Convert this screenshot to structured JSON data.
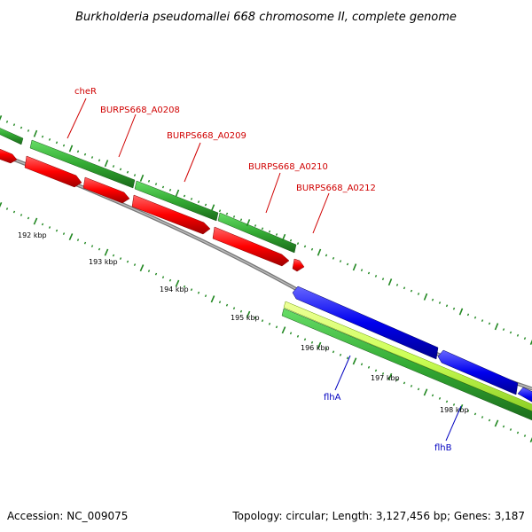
{
  "title": "Burkholderia pseudomallei 668 chromosome II, complete genome",
  "footer": {
    "accession": "Accession: NC_009075",
    "stats": "Topology: circular; Length: 3,127,456 bp; Genes: 3,187"
  },
  "kbp_labels": [
    "192 kbp",
    "193 kbp",
    "194 kbp",
    "195 kbp",
    "196 kbp",
    "197 kbp",
    "198 kbp"
  ],
  "gene_labels_forward": [
    "cheR",
    "BURPS668_A0208",
    "BURPS668_A0209",
    "BURPS668_A0210",
    "BURPS668_A0212"
  ],
  "gene_labels_reverse": [
    "flhA",
    "flhB"
  ],
  "colors": {
    "forward_cds": "#ff0000",
    "reverse_cds": "#0000ff",
    "gene_forward": "#33aa33",
    "gene_reverse": "#33aa33",
    "backbone": "#808080",
    "ticks": "#228822",
    "reverse_highlight": "#ccff66"
  }
}
